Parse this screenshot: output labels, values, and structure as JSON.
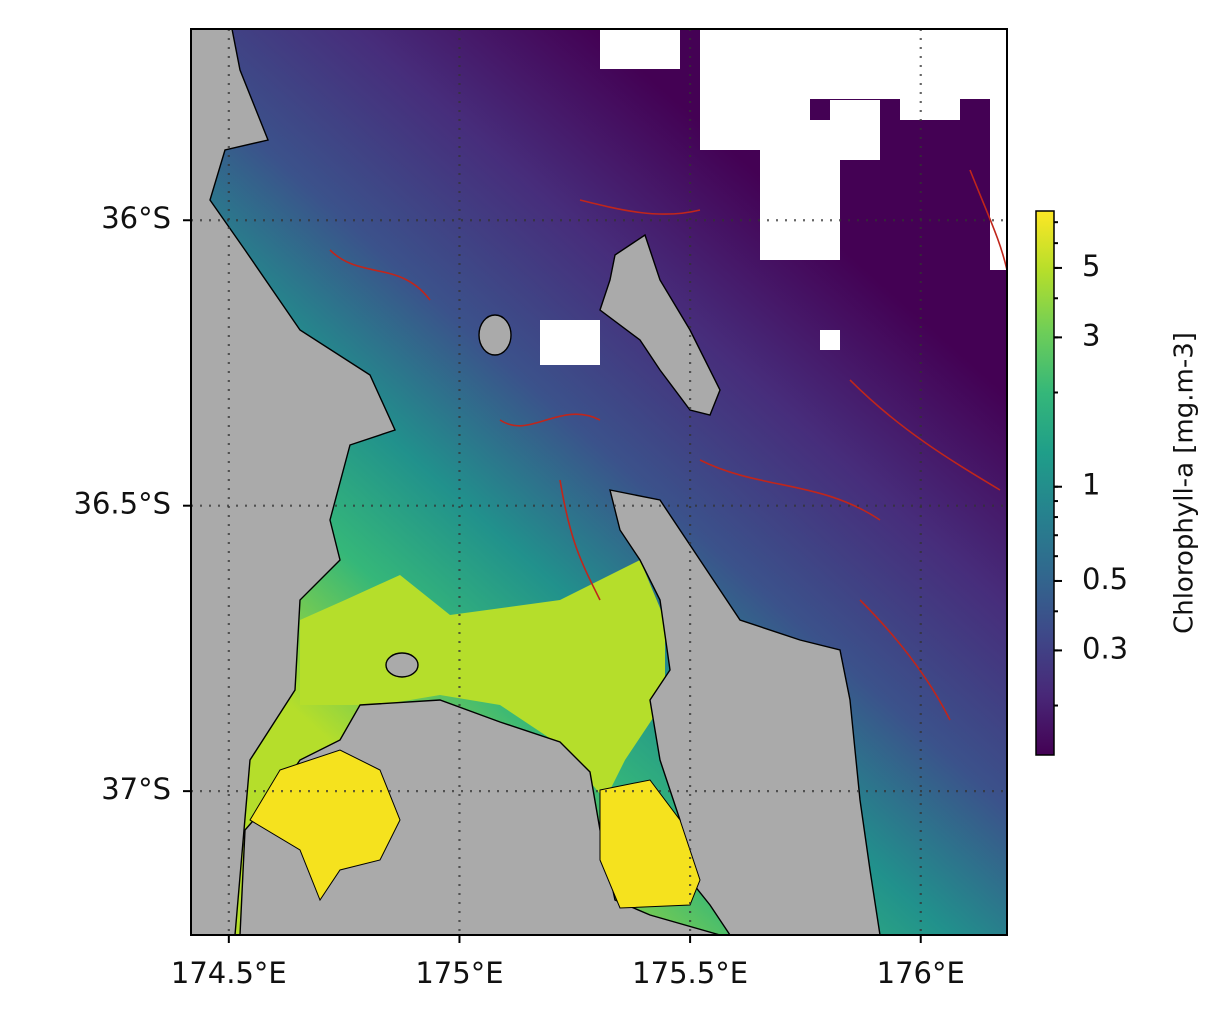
{
  "map": {
    "xlim": [
      174.418,
      176.187
    ],
    "xticks": [
      {
        "value": 174.5,
        "label": "174.5°E"
      },
      {
        "value": 175,
        "label": "175°E"
      },
      {
        "value": 175.5,
        "label": "175.5°E"
      },
      {
        "value": 176,
        "label": "176°E"
      }
    ],
    "ylim": [
      -37.252,
      -35.665
    ],
    "yticks": [
      {
        "value": -36,
        "label": "36°S"
      },
      {
        "value": -36.5,
        "label": "36.5°S"
      },
      {
        "value": -37,
        "label": "37°S"
      }
    ],
    "grid": true,
    "colorbar": {
      "label": "Chlorophyll-a [mg.m-3]",
      "scale": "log",
      "colormap": "viridis",
      "lim": [
        0.139,
        7.6
      ],
      "ticks": [
        0.3,
        0.5,
        1,
        3,
        5
      ]
    }
  }
}
